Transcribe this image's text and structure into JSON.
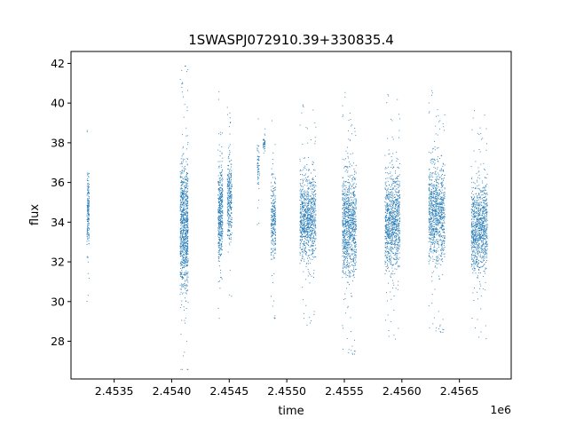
{
  "chart_data": {
    "type": "scatter",
    "title": "1SWASPJ072910.39+330835.4",
    "xlabel": "time",
    "ylabel": "flux",
    "x_offset_label": "1e6",
    "xlim": [
      2453125,
      2456950
    ],
    "ylim": [
      26.1,
      42.6
    ],
    "xticks": [
      2453500,
      2454000,
      2454500,
      2455000,
      2455500,
      2456000,
      2456500
    ],
    "xtick_labels": [
      "2.4535",
      "2.4540",
      "2.4545",
      "2.4550",
      "2.4555",
      "2.4560",
      "2.4565"
    ],
    "yticks": [
      28,
      30,
      32,
      34,
      36,
      38,
      40,
      42
    ],
    "ytick_labels": [
      "28",
      "30",
      "32",
      "34",
      "36",
      "38",
      "40",
      "42"
    ],
    "grid": false,
    "marker_color": "#1f77b4",
    "observing_seasons": [
      {
        "t_start": 2453260,
        "t_end": 2453280,
        "flux_center": 34.6,
        "flux_spread": 1.8,
        "n_points": 180
      },
      {
        "t_start": 2454070,
        "t_end": 2454140,
        "flux_center": 33.8,
        "flux_spread": 3.2,
        "n_points": 900
      },
      {
        "t_start": 2454400,
        "t_end": 2454440,
        "flux_center": 34.5,
        "flux_spread": 2.4,
        "n_points": 420
      },
      {
        "t_start": 2454480,
        "t_end": 2454520,
        "flux_center": 35.2,
        "flux_spread": 2.0,
        "n_points": 300
      },
      {
        "t_start": 2454740,
        "t_end": 2454760,
        "flux_center": 36.8,
        "flux_spread": 1.2,
        "n_points": 60
      },
      {
        "t_start": 2454790,
        "t_end": 2454810,
        "flux_center": 38.0,
        "flux_spread": 0.4,
        "n_points": 40
      },
      {
        "t_start": 2454860,
        "t_end": 2454900,
        "flux_center": 34.2,
        "flux_spread": 2.0,
        "n_points": 260
      },
      {
        "t_start": 2455110,
        "t_end": 2455250,
        "flux_center": 34.3,
        "flux_spread": 2.2,
        "n_points": 900
      },
      {
        "t_start": 2455480,
        "t_end": 2455600,
        "flux_center": 33.9,
        "flux_spread": 2.6,
        "n_points": 950
      },
      {
        "t_start": 2455850,
        "t_end": 2455980,
        "flux_center": 34.1,
        "flux_spread": 2.5,
        "n_points": 950
      },
      {
        "t_start": 2456230,
        "t_end": 2456370,
        "flux_center": 34.5,
        "flux_spread": 2.4,
        "n_points": 950
      },
      {
        "t_start": 2456600,
        "t_end": 2456740,
        "flux_center": 33.8,
        "flux_spread": 2.3,
        "n_points": 950
      }
    ]
  }
}
